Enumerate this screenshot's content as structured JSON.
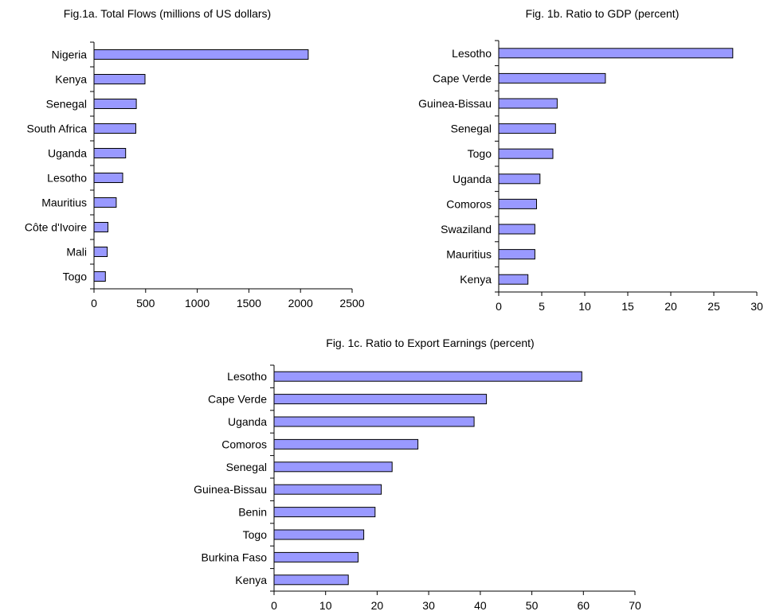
{
  "colors": {
    "bar_fill": "#9999ff",
    "bar_stroke": "#000000",
    "axis": "#000000"
  },
  "chart_data": [
    {
      "id": "fig1a",
      "type": "bar",
      "orientation": "horizontal",
      "title": "Fig.1a. Total Flows (millions of US dollars)",
      "categories": [
        "Nigeria",
        "Kenya",
        "Senegal",
        "South Africa",
        "Uganda",
        "Lesotho",
        "Mauritius",
        "Côte d'Ivoire",
        "Mali",
        "Togo"
      ],
      "values": [
        2075,
        494,
        410,
        405,
        306,
        278,
        215,
        135,
        128,
        110
      ],
      "xlim": [
        0,
        2500
      ],
      "xticks": [
        0,
        500,
        1000,
        1500,
        2000,
        2500
      ],
      "grid": false,
      "legend": "none"
    },
    {
      "id": "fig1b",
      "type": "bar",
      "orientation": "horizontal",
      "title": "Fig. 1b. Ratio to GDP (percent)",
      "categories": [
        "Lesotho",
        "Cape Verde",
        "Guinea-Bissau",
        "Senegal",
        "Togo",
        "Uganda",
        "Comoros",
        "Swaziland",
        "Mauritius",
        "Kenya"
      ],
      "values": [
        27.2,
        12.4,
        6.8,
        6.6,
        6.3,
        4.8,
        4.4,
        4.2,
        4.2,
        3.4
      ],
      "xlim": [
        0,
        30
      ],
      "xticks": [
        0,
        5,
        10,
        15,
        20,
        25,
        30
      ],
      "grid": false,
      "legend": "none"
    },
    {
      "id": "fig1c",
      "type": "bar",
      "orientation": "horizontal",
      "title": "Fig. 1c. Ratio to Export Earnings (percent)",
      "categories": [
        "Lesotho",
        "Cape Verde",
        "Uganda",
        "Comoros",
        "Senegal",
        "Guinea-Bissau",
        "Benin",
        "Togo",
        "Burkina Faso",
        "Kenya"
      ],
      "values": [
        59.7,
        41.2,
        38.8,
        27.9,
        22.9,
        20.8,
        19.6,
        17.4,
        16.3,
        14.4
      ],
      "xlim": [
        0,
        70
      ],
      "xticks": [
        0,
        10,
        20,
        30,
        40,
        50,
        60,
        70
      ],
      "grid": false,
      "legend": "none"
    }
  ]
}
